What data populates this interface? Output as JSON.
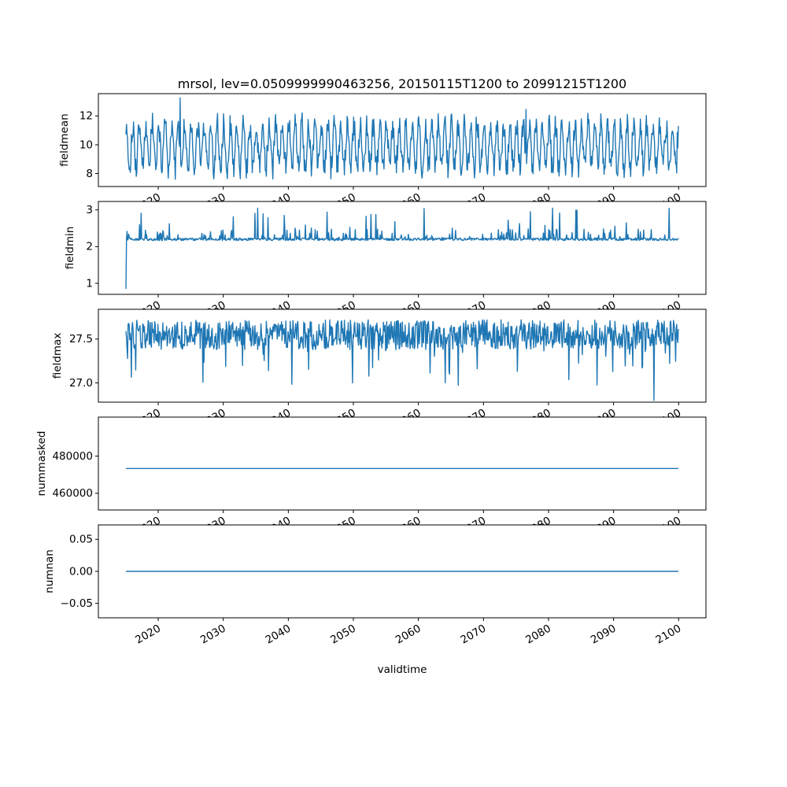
{
  "figure": {
    "title": "mrsol, lev=0.0509999990463256, 20150115T1200 to 20991215T1200",
    "xlabel": "validtime",
    "background_color": "#ffffff",
    "axes_edge_color": "#000000",
    "text_color": "#000000",
    "line_color": "#1f77b4",
    "x_ticks": [
      2020,
      2030,
      2040,
      2050,
      2060,
      2070,
      2080,
      2090,
      2100
    ],
    "x_tick_labels": [
      "2020",
      "2030",
      "2040",
      "2050",
      "2060",
      "2070",
      "2080",
      "2090",
      "2100"
    ],
    "x_axis_range": [
      2010.8,
      2104.2
    ],
    "x_data_start": 2015.04,
    "x_data_end": 2099.96,
    "points_per_year": 12
  },
  "chart_data": [
    {
      "type": "line",
      "name": "fieldmean",
      "title": "mrsol, lev=0.0509999990463256, 20150115T1200 to 20991215T1200",
      "xlabel": "validtime",
      "ylabel": "fieldmean",
      "ylim": [
        7.1,
        13.55
      ],
      "yticks": [
        8,
        10,
        12
      ],
      "ytick_labels": [
        "8",
        "10",
        "12"
      ],
      "legend": "none",
      "grid": false,
      "series": {
        "kind": "seasonal_noisy",
        "base": 9.9,
        "seasonal_amplitude": 1.5,
        "noise_half_range": 0.85,
        "min": 7.5,
        "max": 13.25,
        "notable_points": [
          {
            "x": 2023.4,
            "y": 13.25
          },
          {
            "x": 2076.5,
            "y": 12.45
          }
        ]
      },
      "summary": "Quasi-annual noisy oscillation between about 7.5 and 13.2 around a mean near 10, 2015-2100"
    },
    {
      "type": "line",
      "name": "fieldmin",
      "ylabel": "fieldmin",
      "ylim": [
        0.7,
        3.23
      ],
      "yticks": [
        1,
        2,
        3
      ],
      "ytick_labels": [
        "1",
        "2",
        "3"
      ],
      "grid": false,
      "series": {
        "kind": "baseline_spikes",
        "base": 2.2,
        "noise_half_range": 0.035,
        "bump_probability": 0.12,
        "bump_max": 0.3,
        "spike_probability": 0.018,
        "spike_max": 3.05,
        "first_value": 0.85,
        "notable_points": [
          {
            "x": 2035.3,
            "y": 3.05
          },
          {
            "x": 2077.2,
            "y": 2.95
          }
        ]
      },
      "summary": "Flat baseline near 2.2 with small bumps and rare spikes up to ~3; very first point dips to ~0.85"
    },
    {
      "type": "line",
      "name": "fieldmax",
      "ylabel": "fieldmax",
      "ylim": [
        26.78,
        27.84
      ],
      "yticks": [
        27.0,
        27.5
      ],
      "ytick_labels": [
        "27.0",
        "27.5"
      ],
      "grid": false,
      "series": {
        "kind": "noisy_downspikes",
        "base": 27.55,
        "noise_half_range": 0.17,
        "dip_probability": 0.08,
        "dip_max_depth": 0.5,
        "min": 26.8,
        "max": 27.78,
        "notable_points": [
          {
            "x": 2096.2,
            "y": 26.8
          }
        ]
      },
      "summary": "Noisy band around 27.4-27.7 with frequent downward spikes reaching 26.8-27.2"
    },
    {
      "type": "line",
      "name": "nummasked",
      "ylabel": "nummasked",
      "ylim": [
        451000,
        501000
      ],
      "yticks": [
        460000,
        480000
      ],
      "ytick_labels": [
        "460000",
        "480000"
      ],
      "grid": false,
      "series": {
        "kind": "constant",
        "value": 473334
      },
      "summary": "Constant at about 473000 over the whole period"
    },
    {
      "type": "line",
      "name": "numnan",
      "ylabel": "numnan",
      "ylim": [
        -0.0725,
        0.0725
      ],
      "yticks": [
        -0.05,
        0.0,
        0.05
      ],
      "ytick_labels": [
        "−0.05",
        "0.00",
        "0.05"
      ],
      "grid": false,
      "series": {
        "kind": "constant",
        "value": 0
      },
      "summary": "Constant at 0 over the whole period"
    }
  ]
}
